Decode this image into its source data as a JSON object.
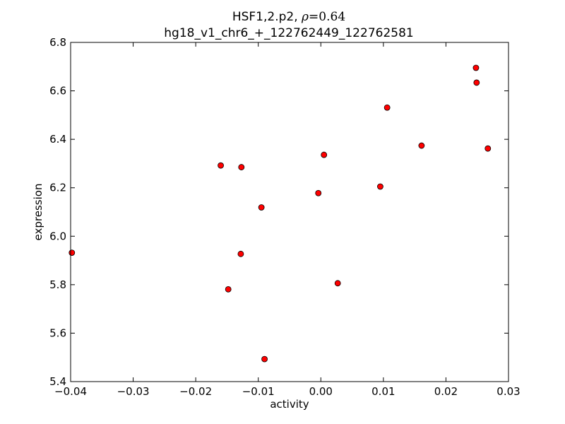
{
  "chart_data": {
    "type": "scatter",
    "title_line1_prefix": "HSF1,2.p2, ",
    "title_line1_rho": "ρ",
    "title_line1_eq": "=0.64",
    "title_line2": "hg18_v1_chr6_+_122762449_122762581",
    "xlabel": "activity",
    "ylabel": "expression",
    "xlim": [
      -0.04,
      0.03
    ],
    "ylim": [
      5.4,
      6.8
    ],
    "xticks": [
      -0.04,
      -0.03,
      -0.02,
      -0.01,
      0.0,
      0.01,
      0.02,
      0.03
    ],
    "xtick_labels": [
      "−0.04",
      "−0.03",
      "−0.02",
      "−0.01",
      "0.00",
      "0.01",
      "0.02",
      "0.03"
    ],
    "yticks": [
      5.4,
      5.6,
      5.8,
      6.0,
      6.2,
      6.4,
      6.6,
      6.8
    ],
    "ytick_labels": [
      "5.4",
      "5.6",
      "5.8",
      "6.0",
      "6.2",
      "6.4",
      "6.6",
      "6.8"
    ],
    "grid": false,
    "marker_color": "#ff0000",
    "marker_edge": "#000000",
    "points": [
      {
        "x": -0.0398,
        "y": 5.932
      },
      {
        "x": -0.016,
        "y": 6.292
      },
      {
        "x": -0.0127,
        "y": 6.285
      },
      {
        "x": -0.0148,
        "y": 5.781
      },
      {
        "x": -0.0128,
        "y": 5.927
      },
      {
        "x": -0.0095,
        "y": 6.119
      },
      {
        "x": -0.009,
        "y": 5.493
      },
      {
        "x": -0.0004,
        "y": 6.178
      },
      {
        "x": 0.0005,
        "y": 6.336
      },
      {
        "x": 0.0027,
        "y": 5.806
      },
      {
        "x": 0.0095,
        "y": 6.205
      },
      {
        "x": 0.0106,
        "y": 6.531
      },
      {
        "x": 0.0161,
        "y": 6.374
      },
      {
        "x": 0.0248,
        "y": 6.695
      },
      {
        "x": 0.0249,
        "y": 6.634
      },
      {
        "x": 0.0267,
        "y": 6.362
      }
    ]
  }
}
